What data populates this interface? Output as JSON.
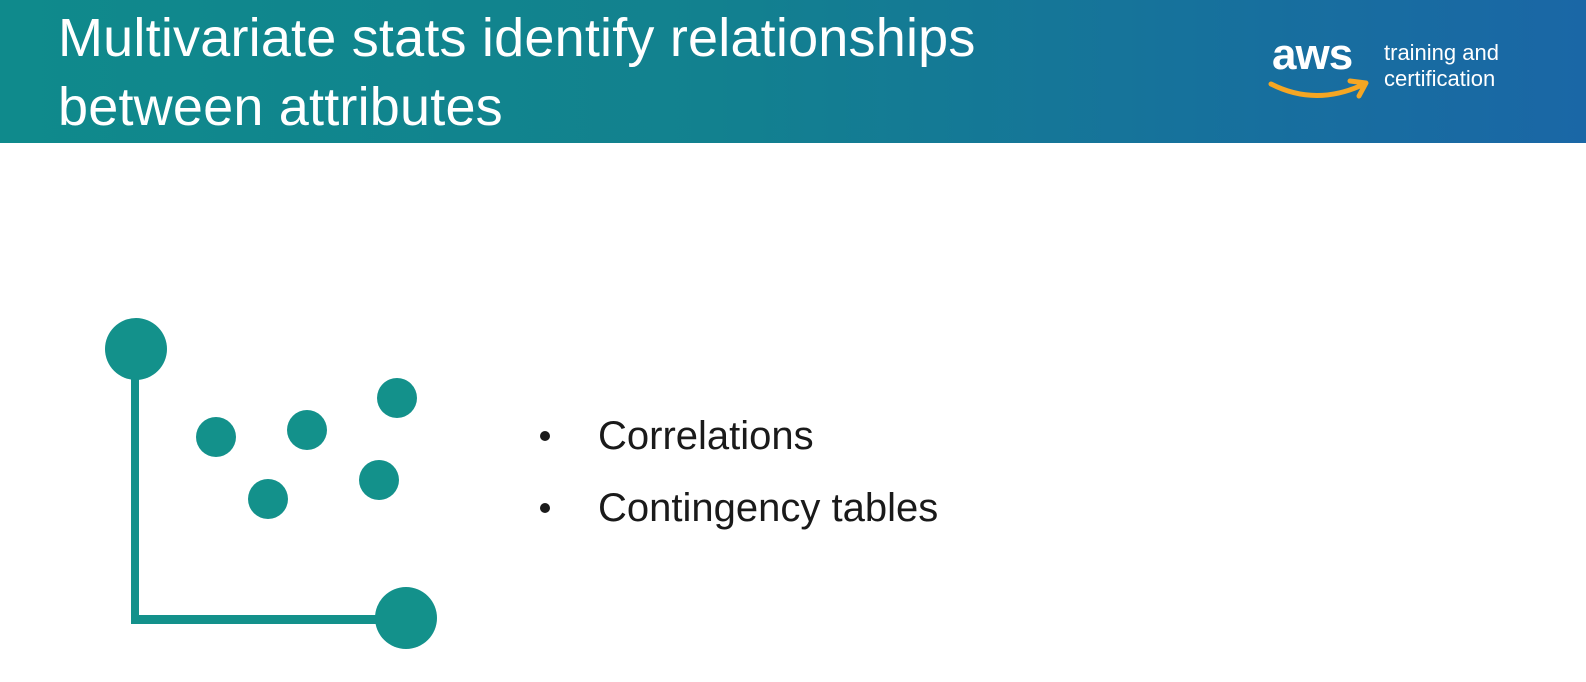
{
  "header": {
    "title_line1": "Multivariate stats identify relationships",
    "title_line2": "between attributes",
    "background_colors": [
      "#0f8a8c",
      "#1a67a6"
    ]
  },
  "logo": {
    "wordmark": "aws",
    "tagline_line1": "training and",
    "tagline_line2": "certification",
    "smile_color": "#f5a623"
  },
  "illustration": {
    "icon": "scatter-plot-icon",
    "color": "#13918b"
  },
  "bullets": [
    "Correlations",
    "Contingency tables"
  ]
}
